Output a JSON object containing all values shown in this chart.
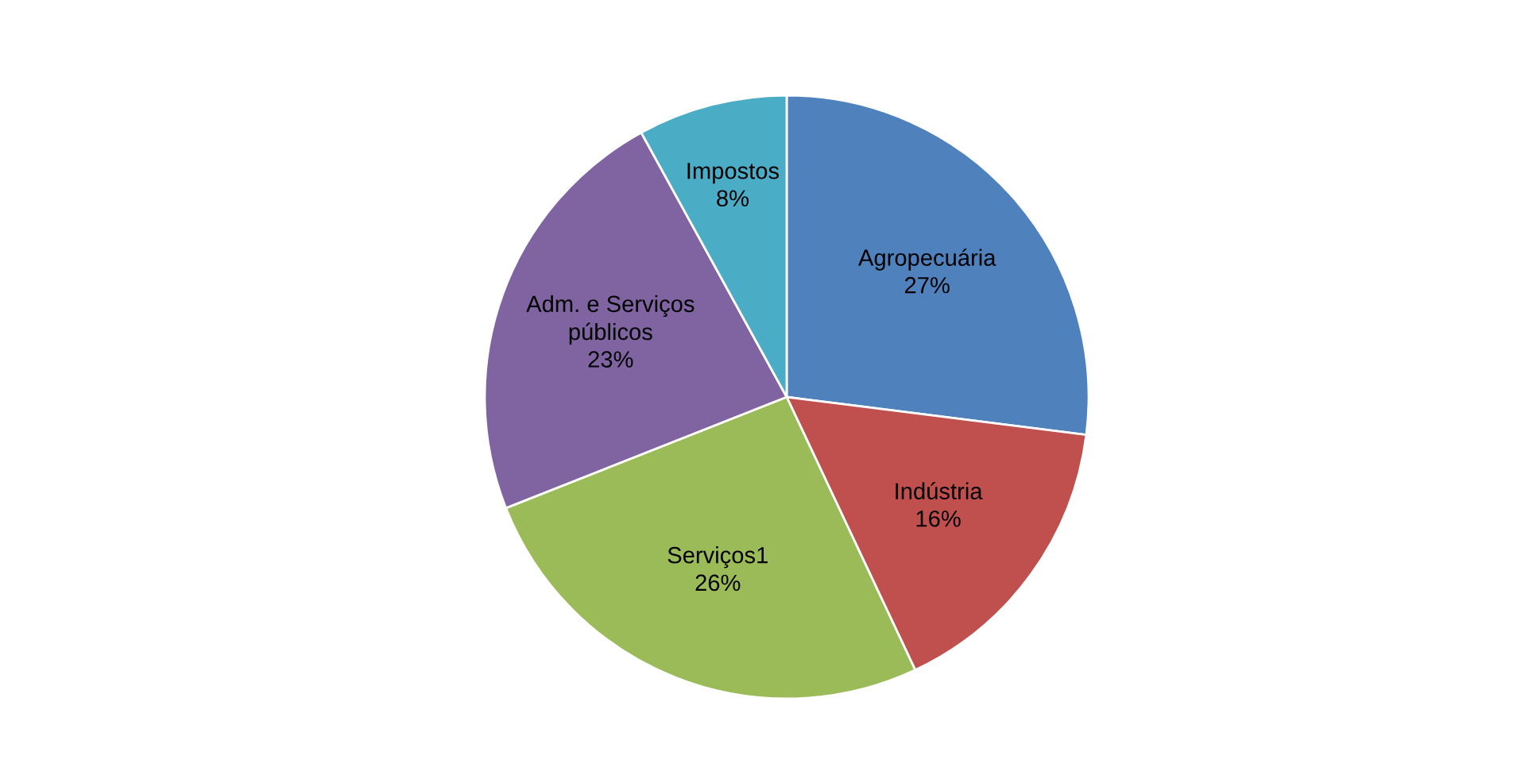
{
  "chart_data": {
    "type": "pie",
    "categories": [
      "Agropecuária",
      "Indústria",
      "Serviços1",
      "Adm. e Serviços\npúblicos",
      "Impostos"
    ],
    "values": [
      27,
      16,
      26,
      23,
      8
    ],
    "colors": [
      "#4f81bd",
      "#c0504d",
      "#9bbb59",
      "#8064a2",
      "#4bacc6"
    ],
    "value_labels": [
      "27%",
      "16%",
      "26%",
      "23%",
      "8%"
    ],
    "legend": false
  }
}
